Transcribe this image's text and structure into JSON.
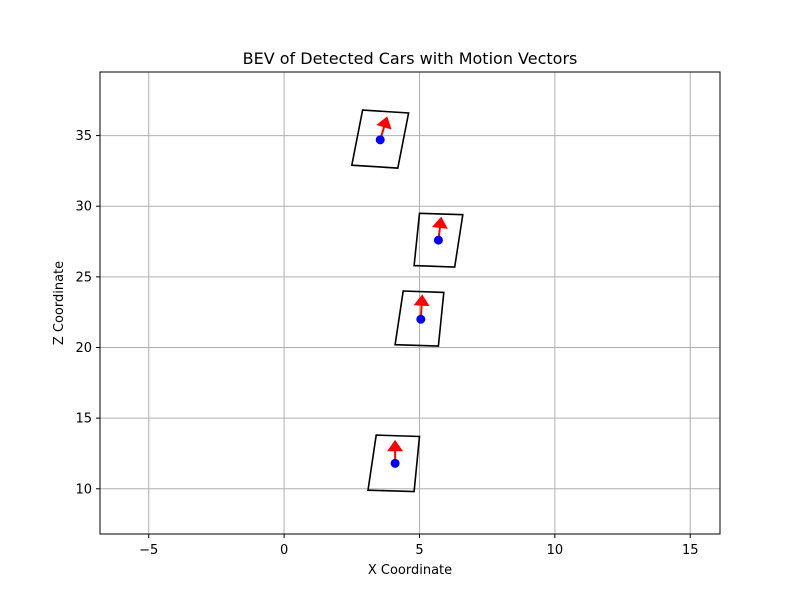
{
  "chart_data": {
    "type": "scatter",
    "title": "BEV of Detected Cars with Motion Vectors",
    "xlabel": "X Coordinate",
    "ylabel": "Z Coordinate",
    "xlim": [
      -6.8,
      16.1
    ],
    "ylim": [
      6.8,
      39.5
    ],
    "xticks": [
      -5,
      0,
      5,
      10,
      15
    ],
    "xtick_labels": [
      "−5",
      "0",
      "5",
      "10",
      "15"
    ],
    "yticks": [
      10,
      15,
      20,
      25,
      30,
      35
    ],
    "ytick_labels": [
      "10",
      "15",
      "20",
      "25",
      "30",
      "35"
    ],
    "grid": true,
    "colors": {
      "box": "#000000",
      "center": "#0000ff",
      "vector": "#ff0000",
      "grid": "#b0b0b0"
    },
    "cars": [
      {
        "center": [
          4.1,
          11.8
        ],
        "box": [
          [
            3.4,
            13.8
          ],
          [
            5.0,
            13.7
          ],
          [
            4.8,
            9.8
          ],
          [
            3.1,
            9.9
          ]
        ],
        "vector": [
          4.1,
          13.4
        ]
      },
      {
        "center": [
          5.05,
          22.0
        ],
        "box": [
          [
            4.4,
            24.0
          ],
          [
            5.9,
            23.9
          ],
          [
            5.7,
            20.1
          ],
          [
            4.1,
            20.2
          ]
        ],
        "vector": [
          5.1,
          23.7
        ]
      },
      {
        "center": [
          5.7,
          27.6
        ],
        "box": [
          [
            5.0,
            29.5
          ],
          [
            6.6,
            29.4
          ],
          [
            6.3,
            25.7
          ],
          [
            4.8,
            25.8
          ]
        ],
        "vector": [
          5.8,
          29.2
        ]
      },
      {
        "center": [
          3.55,
          34.7
        ],
        "box": [
          [
            2.9,
            36.8
          ],
          [
            4.6,
            36.6
          ],
          [
            4.2,
            32.7
          ],
          [
            2.5,
            32.9
          ]
        ],
        "vector": [
          3.8,
          36.3
        ]
      }
    ]
  }
}
